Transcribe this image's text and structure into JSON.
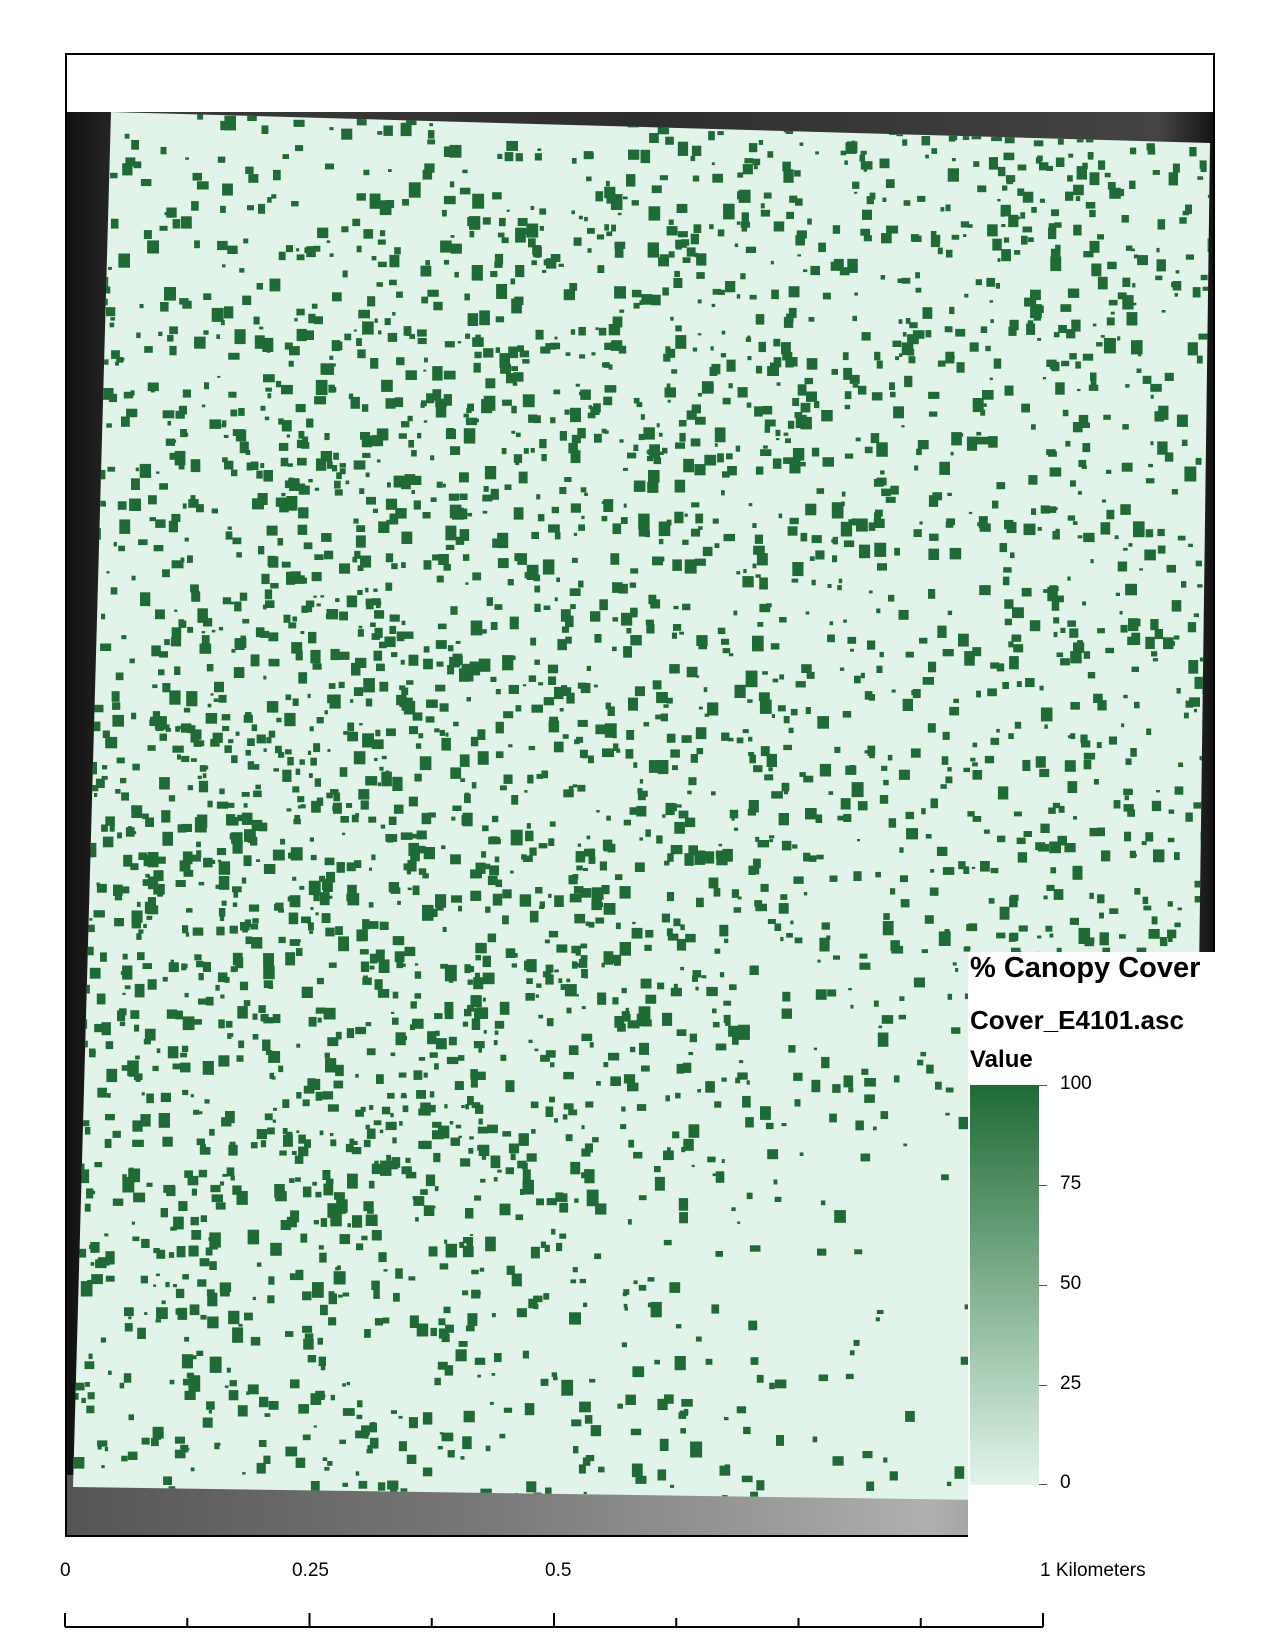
{
  "legend": {
    "title": "% Canopy Cover",
    "layer_name": "Cover_E4101.asc",
    "field_label": "Value",
    "ramp_colors": [
      "#1f6b35",
      "#e2f4ea"
    ],
    "breaks": [
      "100",
      "75",
      "50",
      "25",
      "0"
    ]
  },
  "scalebar": {
    "labels": [
      "0",
      "0.25",
      "0.5",
      "1 Kilometers"
    ],
    "subdivisions": 8
  },
  "map": {
    "raster_colors": {
      "high": "#1f6b35",
      "low": "#e2f4ea",
      "background": "#2a2a2a"
    }
  }
}
